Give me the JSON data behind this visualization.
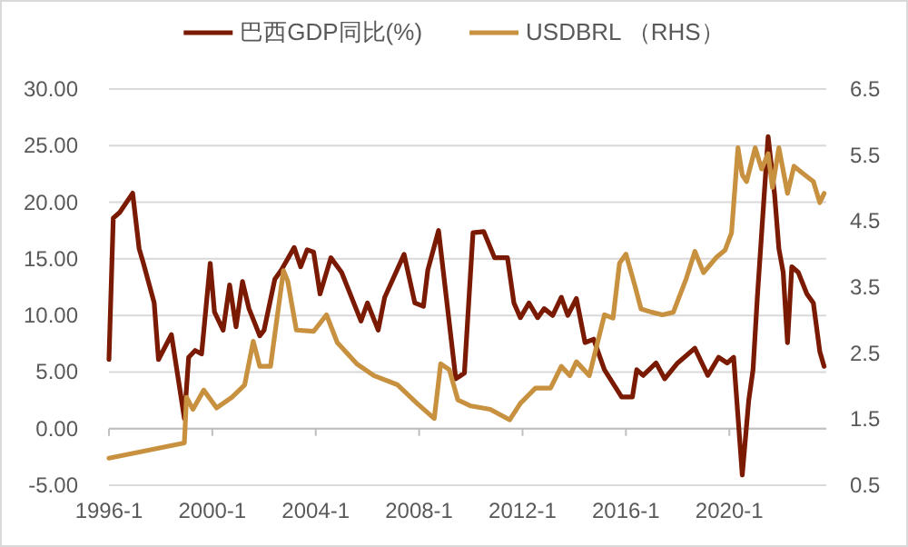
{
  "chart_data": {
    "type": "line",
    "legend": "top",
    "grid": "y",
    "xlim": [
      "1996-01",
      "2023-10"
    ],
    "xticks": [
      {
        "value": "1996-01",
        "label": "1996-1"
      },
      {
        "value": "2000-01",
        "label": "2000-1"
      },
      {
        "value": "2004-01",
        "label": "2004-1"
      },
      {
        "value": "2008-01",
        "label": "2008-1"
      },
      {
        "value": "2012-01",
        "label": "2012-1"
      },
      {
        "value": "2016-01",
        "label": "2016-1"
      },
      {
        "value": "2020-01",
        "label": "2020-1"
      }
    ],
    "ylim": [
      -5,
      30
    ],
    "yticks": [
      {
        "value": -5,
        "label": "-5.00"
      },
      {
        "value": 0,
        "label": "0.00"
      },
      {
        "value": 5,
        "label": "5.00"
      },
      {
        "value": 10,
        "label": "10.00"
      },
      {
        "value": 15,
        "label": "15.00"
      },
      {
        "value": 20,
        "label": "20.00"
      },
      {
        "value": 25,
        "label": "25.00"
      },
      {
        "value": 30,
        "label": "30.00"
      }
    ],
    "y2lim": [
      0.5,
      6.5
    ],
    "y2ticks": [
      0.5,
      1.5,
      2.5,
      3.5,
      4.5,
      5.5,
      6.5
    ],
    "series": [
      {
        "name": "巴西GDP同比(%)",
        "color": "#7b1a02",
        "x": [
          "1996-01",
          "1996-03",
          "1996-06",
          "1996-12",
          "1997-03",
          "1997-05",
          "1997-10",
          "1997-12",
          "1998-06",
          "1998-12",
          "1999-02",
          "1999-05",
          "1999-08",
          "1999-12",
          "2000-02",
          "2000-06",
          "2000-09",
          "2000-12",
          "2001-03",
          "2001-06",
          "2001-11",
          "2002-01",
          "2002-06",
          "2002-09",
          "2003-03",
          "2003-06",
          "2003-09",
          "2003-12",
          "2004-03",
          "2004-08",
          "2005-01",
          "2005-10",
          "2006-01",
          "2006-06",
          "2006-09",
          "2007-06",
          "2007-11",
          "2008-03",
          "2008-05",
          "2008-10",
          "2009-06",
          "2009-10",
          "2010-02",
          "2010-07",
          "2010-12",
          "2011-06",
          "2011-09",
          "2011-12",
          "2012-04",
          "2012-08",
          "2012-11",
          "2013-03",
          "2013-07",
          "2013-10",
          "2014-02",
          "2014-06",
          "2014-10",
          "2015-03",
          "2015-11",
          "2016-04",
          "2016-06",
          "2016-09",
          "2017-03",
          "2017-07",
          "2018-01",
          "2018-09",
          "2019-03",
          "2019-08",
          "2019-12",
          "2020-03",
          "2020-07",
          "2020-10",
          "2020-12",
          "2021-02",
          "2021-07",
          "2021-10",
          "2021-12",
          "2022-02",
          "2022-04",
          "2022-06",
          "2022-09",
          "2023-01",
          "2023-04",
          "2023-07",
          "2023-09"
        ],
        "values": [
          6.1,
          18.6,
          19.1,
          20.8,
          15.9,
          14.6,
          11.1,
          6.1,
          8.3,
          0.9,
          6.3,
          6.9,
          6.6,
          14.6,
          10.3,
          8.7,
          12.7,
          9.0,
          13.0,
          10.6,
          8.2,
          8.7,
          13.2,
          14.0,
          16.0,
          14.3,
          15.8,
          15.6,
          11.9,
          15.1,
          13.8,
          9.5,
          11.1,
          8.7,
          11.6,
          15.4,
          11.1,
          10.8,
          14.0,
          17.5,
          4.4,
          4.9,
          17.3,
          17.4,
          15.1,
          15.1,
          11.1,
          9.8,
          11.1,
          9.8,
          10.6,
          10.0,
          11.6,
          10.0,
          11.5,
          7.6,
          7.9,
          5.2,
          2.8,
          2.8,
          5.2,
          4.7,
          5.8,
          4.4,
          5.8,
          7.1,
          4.7,
          6.3,
          5.8,
          6.3,
          -4.1,
          2.5,
          5.2,
          11.6,
          25.8,
          20.7,
          15.9,
          13.8,
          7.6,
          14.3,
          13.8,
          11.9,
          11.1,
          6.8,
          5.5
        ]
      },
      {
        "name": "USDBRL （RHS）",
        "color": "#c8913f",
        "axis": "y2",
        "x": [
          "1996-01",
          "1998-12",
          "1999-01",
          "1999-04",
          "1999-09",
          "2000-03",
          "2000-10",
          "2001-04",
          "2001-08",
          "2001-11",
          "2002-04",
          "2002-10",
          "2002-12",
          "2003-04",
          "2003-12",
          "2004-06",
          "2004-11",
          "2005-08",
          "2006-04",
          "2007-03",
          "2007-12",
          "2008-08",
          "2008-11",
          "2009-03",
          "2009-07",
          "2010-01",
          "2010-10",
          "2011-07",
          "2011-12",
          "2012-07",
          "2013-02",
          "2013-07",
          "2013-11",
          "2014-02",
          "2014-08",
          "2015-03",
          "2015-07",
          "2015-10",
          "2016-01",
          "2016-05",
          "2016-08",
          "2017-01",
          "2017-06",
          "2017-11",
          "2018-05",
          "2018-09",
          "2019-01",
          "2019-07",
          "2019-11",
          "2020-02",
          "2020-05",
          "2020-07",
          "2020-09",
          "2021-01",
          "2021-04",
          "2021-07",
          "2021-09",
          "2021-12",
          "2022-04",
          "2022-07",
          "2022-12",
          "2023-04",
          "2023-07",
          "2023-09"
        ],
        "values": [
          0.91,
          1.14,
          1.83,
          1.65,
          1.94,
          1.67,
          1.83,
          2.02,
          2.68,
          2.3,
          2.3,
          3.75,
          3.59,
          2.85,
          2.83,
          3.08,
          2.66,
          2.34,
          2.16,
          2.02,
          1.74,
          1.51,
          2.34,
          2.25,
          1.79,
          1.7,
          1.65,
          1.49,
          1.74,
          1.97,
          1.97,
          2.3,
          2.16,
          2.37,
          2.16,
          3.08,
          3.03,
          3.86,
          4.0,
          3.54,
          3.17,
          3.12,
          3.08,
          3.12,
          3.63,
          4.04,
          3.72,
          3.95,
          4.06,
          4.32,
          5.61,
          5.2,
          5.1,
          5.61,
          5.29,
          5.52,
          5.01,
          5.61,
          4.92,
          5.33,
          5.2,
          5.1,
          4.78,
          4.92
        ]
      }
    ]
  }
}
